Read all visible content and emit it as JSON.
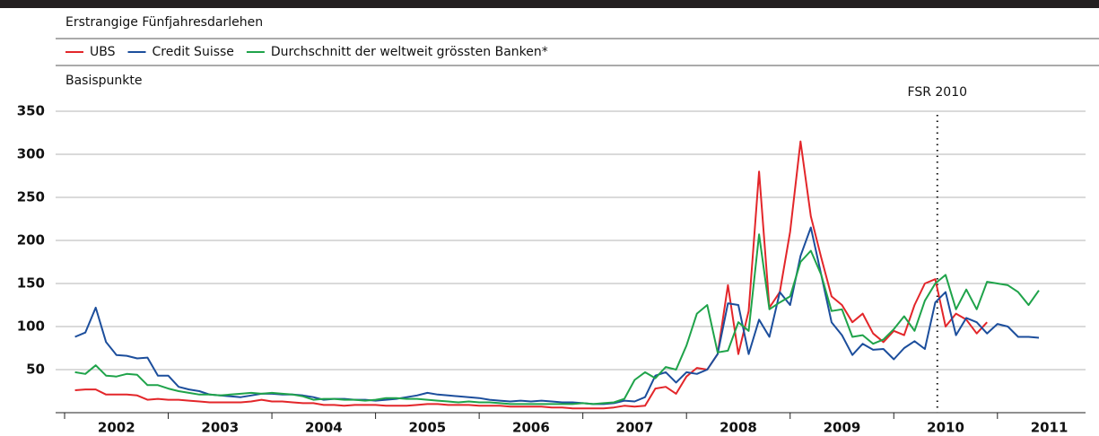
{
  "chart_data": {
    "type": "line",
    "subtitle": "Erstrangige Fünfjahresdarlehen",
    "y_label": "Basispunkte",
    "x": [
      2002.1,
      2002.2,
      2002.3,
      2002.4,
      2002.5,
      2002.6,
      2002.7,
      2002.8,
      2002.9,
      2003.0,
      2003.1,
      2003.2,
      2003.3,
      2003.4,
      2003.5,
      2003.6,
      2003.7,
      2003.8,
      2003.9,
      2004.0,
      2004.1,
      2004.2,
      2004.3,
      2004.4,
      2004.5,
      2004.6,
      2004.7,
      2004.8,
      2004.9,
      2005.0,
      2005.1,
      2005.2,
      2005.3,
      2005.4,
      2005.5,
      2005.6,
      2005.7,
      2005.8,
      2005.9,
      2006.0,
      2006.1,
      2006.2,
      2006.3,
      2006.4,
      2006.5,
      2006.6,
      2006.7,
      2006.8,
      2006.9,
      2007.0,
      2007.1,
      2007.2,
      2007.3,
      2007.4,
      2007.5,
      2007.6,
      2007.7,
      2007.8,
      2007.9,
      2008.0,
      2008.1,
      2008.2,
      2008.3,
      2008.4,
      2008.5,
      2008.6,
      2008.7,
      2008.8,
      2008.9,
      2009.0,
      2009.1,
      2009.2,
      2009.3,
      2009.4,
      2009.5,
      2009.6,
      2009.7,
      2009.8,
      2009.9,
      2010.0,
      2010.1,
      2010.2,
      2010.3,
      2010.4,
      2010.5,
      2010.6,
      2010.7,
      2010.8,
      2010.9,
      2011.0,
      2011.1,
      2011.2,
      2011.3,
      2011.4
    ],
    "series": [
      {
        "name": "UBS",
        "color": "#e3262a",
        "values": [
          26,
          27,
          27,
          21,
          21,
          21,
          20,
          15,
          16,
          15,
          15,
          14,
          13,
          12,
          12,
          12,
          12,
          13,
          15,
          13,
          13,
          12,
          11,
          11,
          9,
          9,
          8,
          9,
          9,
          9,
          8,
          8,
          8,
          9,
          10,
          10,
          9,
          9,
          9,
          8,
          8,
          8,
          7,
          7,
          7,
          7,
          6,
          6,
          5,
          5,
          5,
          5,
          6,
          8,
          7,
          8,
          28,
          30,
          22,
          42,
          52,
          50,
          68,
          148,
          68,
          118,
          280,
          122,
          140,
          210,
          315,
          228,
          180,
          135,
          125,
          105,
          115,
          92,
          82,
          95,
          90,
          125,
          150,
          155,
          100,
          115,
          108,
          92,
          105,
          null,
          null,
          null,
          null,
          null
        ]
      },
      {
        "name": "Credit Suisse",
        "color": "#1c4e9c",
        "values": [
          88,
          93,
          122,
          82,
          67,
          66,
          63,
          64,
          43,
          43,
          30,
          27,
          25,
          21,
          20,
          19,
          18,
          20,
          22,
          22,
          21,
          21,
          20,
          18,
          15,
          16,
          16,
          15,
          15,
          14,
          15,
          16,
          18,
          20,
          23,
          21,
          20,
          19,
          18,
          17,
          15,
          14,
          13,
          14,
          13,
          14,
          13,
          12,
          12,
          11,
          10,
          10,
          11,
          14,
          13,
          18,
          43,
          47,
          35,
          47,
          45,
          50,
          68,
          127,
          125,
          68,
          108,
          88,
          140,
          125,
          182,
          215,
          160,
          105,
          90,
          67,
          80,
          73,
          74,
          62,
          75,
          83,
          74,
          128,
          140,
          90,
          110,
          105,
          92,
          103,
          100,
          88,
          88,
          87
        ]
      },
      {
        "name": "Durchschnitt der weltweit grössten Banken*",
        "color": "#1fa34a",
        "values": [
          47,
          45,
          55,
          43,
          42,
          45,
          44,
          32,
          32,
          28,
          25,
          23,
          21,
          21,
          20,
          21,
          22,
          23,
          22,
          23,
          22,
          21,
          19,
          15,
          16,
          16,
          15,
          15,
          14,
          15,
          17,
          17,
          16,
          16,
          15,
          14,
          13,
          12,
          13,
          12,
          12,
          11,
          10,
          10,
          10,
          10,
          10,
          10,
          10,
          11,
          10,
          11,
          12,
          16,
          38,
          47,
          40,
          53,
          50,
          78,
          115,
          125,
          70,
          72,
          105,
          95,
          207,
          120,
          128,
          135,
          175,
          188,
          160,
          118,
          120,
          88,
          90,
          80,
          85,
          97,
          112,
          95,
          130,
          150,
          160,
          120,
          143,
          120,
          152,
          150,
          148,
          140,
          125,
          142
        ]
      }
    ],
    "xlim": [
      2002,
      2011.85
    ],
    "xticks": [
      {
        "value": 2002.5,
        "label": "2002"
      },
      {
        "value": 2003.5,
        "label": "2003"
      },
      {
        "value": 2004.5,
        "label": "2004"
      },
      {
        "value": 2005.5,
        "label": "2005"
      },
      {
        "value": 2006.5,
        "label": "2006"
      },
      {
        "value": 2007.5,
        "label": "2007"
      },
      {
        "value": 2008.5,
        "label": "2008"
      },
      {
        "value": 2009.5,
        "label": "2009"
      },
      {
        "value": 2010.5,
        "label": "2010"
      },
      {
        "value": 2011.5,
        "label": "2011"
      }
    ],
    "ylim": [
      0,
      350
    ],
    "yticks": [
      50,
      100,
      150,
      200,
      250,
      300,
      350
    ],
    "grid": true,
    "annotations": [
      {
        "text": "FSR 2010",
        "x": 2010.42
      }
    ]
  }
}
